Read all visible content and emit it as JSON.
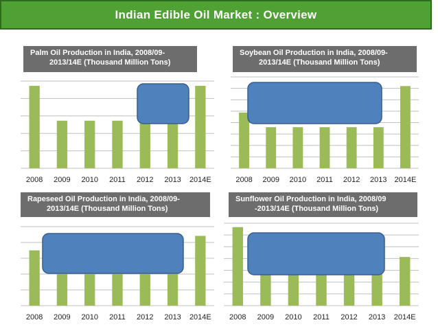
{
  "header": {
    "title": "Indian Edible Oil Market : Overview"
  },
  "colors": {
    "title_bg": "#4fa134",
    "title_border": "#2f6b1e",
    "panel_title_bg": "#6d6d6d",
    "bar": "#9bbb59",
    "overlay_fill": "#4f81bd",
    "overlay_stroke": "#385d8a",
    "grid": "#bfbfbf"
  },
  "chart_data": [
    {
      "type": "bar",
      "title_line1": "Palm Oil Production in India, 2008/09-",
      "title_line2": "2013/14E (Thousand Million Tons)",
      "categories": [
        "2008",
        "2009",
        "2010",
        "2011",
        "2012",
        "2013",
        "2014E"
      ],
      "values": [
        5.2,
        3.0,
        3.0,
        3.0,
        3.0,
        3.0,
        5.2
      ],
      "ylim": [
        0,
        5.5
      ],
      "gridlines": 5,
      "xlabel": "",
      "ylabel": ""
    },
    {
      "type": "bar",
      "title_line1": "Soybean Oil Production in India, 2008/09-",
      "title_line2": "2013/14E (Thousand Million Tons)",
      "categories": [
        "2008",
        "2009",
        "2010",
        "2011",
        "2012",
        "2013",
        "2014E"
      ],
      "values": [
        6.1,
        4.5,
        4.5,
        4.5,
        4.5,
        4.5,
        9.0
      ],
      "ylim": [
        0,
        10
      ],
      "gridlines": 8,
      "xlabel": "",
      "ylabel": ""
    },
    {
      "type": "bar",
      "title_line1": "Rapeseed Oil Production in India, 2008/09-",
      "title_line2": "2013/14E (Thousand Million Tons)",
      "categories": [
        "2008",
        "2009",
        "2010",
        "2011",
        "2012",
        "2013",
        "2014E"
      ],
      "values": [
        4.2,
        2.4,
        2.4,
        2.4,
        2.4,
        2.4,
        5.3
      ],
      "ylim": [
        0,
        6
      ],
      "gridlines": 5,
      "xlabel": "",
      "ylabel": ""
    },
    {
      "type": "bar",
      "title_line1": "Sunflower Oil Production in India, 2008/09",
      "title_line2": "-2013/14E (Thousand Million Tons)",
      "categories": [
        "2008",
        "2009",
        "2010",
        "2011",
        "2012",
        "2013",
        "2014E"
      ],
      "values": [
        10.0,
        4.5,
        4.5,
        4.5,
        4.5,
        4.5,
        6.2
      ],
      "ylim": [
        0,
        10.5
      ],
      "gridlines": 7,
      "xlabel": "",
      "ylabel": ""
    }
  ]
}
